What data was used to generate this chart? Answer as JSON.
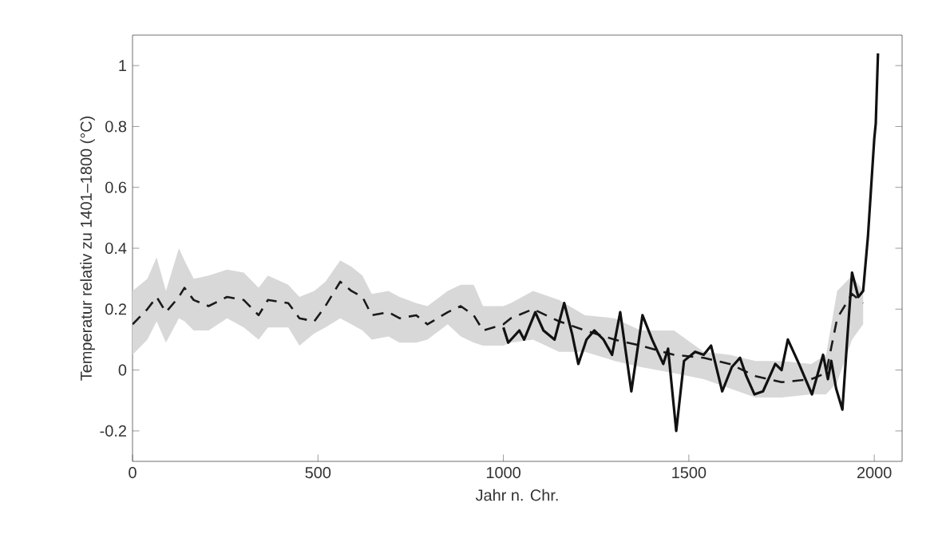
{
  "chart_data": {
    "type": "line",
    "xlabel": "Jahr n. Chr.",
    "ylabel": "Temperatur relativ zu 1401–1800 (°C)",
    "xlim": [
      0,
      2075
    ],
    "ylim": [
      -0.3,
      1.1
    ],
    "xticks": [
      0,
      500,
      1000,
      1500,
      2000
    ],
    "yticks": [
      -0.2,
      0,
      0.2,
      0.4,
      0.6,
      0.8,
      1
    ],
    "grid": false,
    "series": [
      {
        "color": "#1a1a1a",
        "line_style": "dashed",
        "x": [
          0,
          40,
          65,
          90,
          125,
          140,
          165,
          205,
          255,
          300,
          340,
          365,
          420,
          450,
          490,
          520,
          560,
          590,
          620,
          645,
          690,
          720,
          765,
          795,
          850,
          885,
          920,
          945,
          1000,
          1020,
          1080,
          1150,
          1220,
          1300,
          1370,
          1460,
          1540,
          1610,
          1680,
          1750,
          1830,
          1870,
          1900,
          1940,
          1970
        ],
        "values": [
          0.15,
          0.2,
          0.24,
          0.19,
          0.24,
          0.27,
          0.23,
          0.21,
          0.24,
          0.23,
          0.18,
          0.23,
          0.22,
          0.17,
          0.16,
          0.21,
          0.29,
          0.26,
          0.24,
          0.18,
          0.19,
          0.17,
          0.18,
          0.15,
          0.19,
          0.21,
          0.18,
          0.13,
          0.15,
          0.17,
          0.2,
          0.16,
          0.13,
          0.1,
          0.08,
          0.05,
          0.04,
          0.02,
          -0.02,
          -0.04,
          -0.03,
          -0.01,
          0.17,
          0.25,
          0.22
        ],
        "lower": [
          0.05,
          0.1,
          0.16,
          0.09,
          0.17,
          0.16,
          0.13,
          0.13,
          0.17,
          0.14,
          0.1,
          0.14,
          0.14,
          0.08,
          0.12,
          0.14,
          0.17,
          0.15,
          0.13,
          0.1,
          0.11,
          0.09,
          0.09,
          0.1,
          0.15,
          0.11,
          0.09,
          0.08,
          0.08,
          0.09,
          0.1,
          0.06,
          0.06,
          0.03,
          0.01,
          -0.01,
          -0.03,
          -0.06,
          -0.09,
          -0.09,
          -0.08,
          -0.08,
          -0.04,
          0.1,
          0.15
        ],
        "upper": [
          0.26,
          0.3,
          0.37,
          0.26,
          0.4,
          0.36,
          0.3,
          0.31,
          0.33,
          0.32,
          0.27,
          0.31,
          0.28,
          0.24,
          0.26,
          0.29,
          0.36,
          0.34,
          0.31,
          0.25,
          0.26,
          0.24,
          0.22,
          0.21,
          0.26,
          0.28,
          0.28,
          0.21,
          0.21,
          0.22,
          0.26,
          0.23,
          0.18,
          0.17,
          0.13,
          0.13,
          0.06,
          0.05,
          0.03,
          0.03,
          0.02,
          0.05,
          0.26,
          0.31,
          0.26
        ]
      },
      {
        "color": "#111111",
        "line_style": "solid",
        "x": [
          1000,
          1013,
          1043,
          1056,
          1086,
          1108,
          1138,
          1164,
          1185,
          1202,
          1224,
          1245,
          1270,
          1293,
          1315,
          1345,
          1375,
          1401,
          1431,
          1444,
          1466,
          1487,
          1517,
          1540,
          1560,
          1590,
          1616,
          1638,
          1655,
          1677,
          1700,
          1733,
          1750,
          1767,
          1797,
          1832,
          1862,
          1875,
          1884,
          1897,
          1914,
          1927,
          1940,
          1957,
          1970,
          1983,
          2000,
          2004,
          2010
        ],
        "values": [
          0.14,
          0.09,
          0.13,
          0.1,
          0.19,
          0.13,
          0.1,
          0.22,
          0.12,
          0.02,
          0.1,
          0.13,
          0.1,
          0.05,
          0.19,
          -0.07,
          0.18,
          0.1,
          0.02,
          0.07,
          -0.2,
          0.03,
          0.06,
          0.05,
          0.08,
          -0.07,
          0.01,
          0.04,
          -0.02,
          -0.08,
          -0.07,
          0.02,
          0.0,
          0.1,
          0.02,
          -0.08,
          0.05,
          -0.03,
          0.03,
          -0.06,
          -0.13,
          0.1,
          0.32,
          0.24,
          0.26,
          0.44,
          0.76,
          0.81,
          1.04
        ]
      }
    ]
  }
}
